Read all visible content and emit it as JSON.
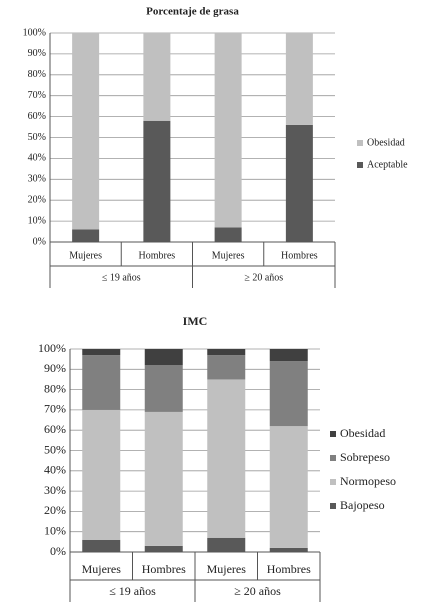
{
  "chart_data": [
    {
      "type": "stacked-bar",
      "title": "Porcentaje de grasa",
      "categories": [
        "Mujeres",
        "Hombres",
        "Mujeres",
        "Hombres"
      ],
      "groups": [
        "≤ 19 años",
        "≥ 20 años"
      ],
      "series": [
        {
          "name": "Aceptable",
          "color": "#595959",
          "values": [
            6,
            58,
            7,
            56
          ]
        },
        {
          "name": "Obesidad",
          "color": "#c0c0c0",
          "values": [
            94,
            42,
            93,
            44
          ]
        }
      ],
      "ylim": [
        0,
        100
      ],
      "yticks": [
        {
          "value": 0,
          "label": "0%"
        },
        {
          "value": 10,
          "label": "10%"
        },
        {
          "value": 20,
          "label": "20%"
        },
        {
          "value": 30,
          "label": "30%"
        },
        {
          "value": 40,
          "label": "40%"
        },
        {
          "value": 50,
          "label": "50%"
        },
        {
          "value": 60,
          "label": "60%"
        },
        {
          "value": 70,
          "label": "70%"
        },
        {
          "value": 80,
          "label": "80%"
        },
        {
          "value": 90,
          "label": "90%"
        },
        {
          "value": 100,
          "label": "100%"
        }
      ],
      "grid": true,
      "legend": "right"
    },
    {
      "type": "stacked-bar",
      "title": "IMC",
      "categories": [
        "Mujeres",
        "Hombres",
        "Mujeres",
        "Hombres"
      ],
      "groups": [
        "≤ 19 años",
        "≥ 20 años"
      ],
      "series": [
        {
          "name": "Bajopeso",
          "color": "#595959",
          "values": [
            6,
            3,
            7,
            2
          ]
        },
        {
          "name": "Normopeso",
          "color": "#c0c0c0",
          "values": [
            64,
            66,
            78,
            60
          ]
        },
        {
          "name": "Sobrepeso",
          "color": "#808080",
          "values": [
            27,
            23,
            12,
            32
          ]
        },
        {
          "name": "Obesidad",
          "color": "#404040",
          "values": [
            3,
            8,
            3,
            6
          ]
        }
      ],
      "ylim": [
        0,
        100
      ],
      "yticks": [
        {
          "value": 0,
          "label": "0%"
        },
        {
          "value": 10,
          "label": "10%"
        },
        {
          "value": 20,
          "label": "20%"
        },
        {
          "value": 30,
          "label": "30%"
        },
        {
          "value": 40,
          "label": "40%"
        },
        {
          "value": 50,
          "label": "50%"
        },
        {
          "value": 60,
          "label": "60%"
        },
        {
          "value": 70,
          "label": "70%"
        },
        {
          "value": 80,
          "label": "80%"
        },
        {
          "value": 90,
          "label": "90%"
        },
        {
          "value": 100,
          "label": "100%"
        }
      ],
      "grid": true,
      "legend": "right"
    }
  ]
}
